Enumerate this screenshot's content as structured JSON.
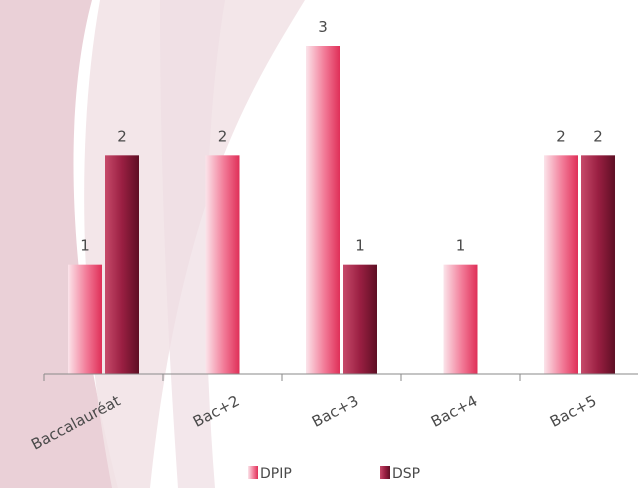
{
  "chart_data": {
    "type": "bar",
    "categories": [
      "Baccalauréat",
      "Bac+2",
      "Bac+3",
      "Bac+4",
      "Bac+5"
    ],
    "series": [
      {
        "name": "DPIP",
        "values": [
          1,
          2,
          3,
          1,
          2
        ],
        "color": "#e0335a"
      },
      {
        "name": "DSP",
        "values": [
          2,
          null,
          1,
          null,
          2
        ],
        "color": "#7a1530"
      }
    ],
    "data_labels": true,
    "ylim": [
      0,
      3
    ],
    "grid": false,
    "legend_position": "bottom-center",
    "title": "",
    "xlabel": "",
    "ylabel": ""
  }
}
